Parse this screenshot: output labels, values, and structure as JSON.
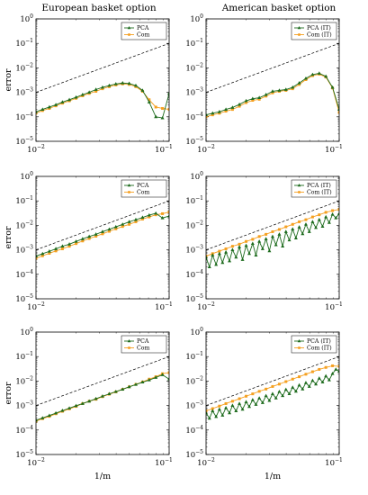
{
  "columns": [
    "European basket option",
    "American basket option"
  ],
  "colors": {
    "PCA": "#1d6b1d",
    "Com": "#f5a020",
    "reference": "#000000"
  },
  "chart_data": [
    {
      "type": "line",
      "log_scale": {
        "x": true,
        "y": true
      },
      "xlim": [
        0.01,
        0.1
      ],
      "ylim": [
        1e-05,
        1
      ],
      "xticks": [
        {
          "base": "10",
          "exp": "−2"
        },
        {
          "base": "10",
          "exp": "−1"
        }
      ],
      "yticks": [
        {
          "base": "10",
          "exp": "−5"
        },
        {
          "base": "10",
          "exp": "−4"
        },
        {
          "base": "10",
          "exp": "−3"
        },
        {
          "base": "10",
          "exp": "−2"
        },
        {
          "base": "10",
          "exp": "−1"
        },
        {
          "base": "10",
          "exp": "0"
        }
      ],
      "ylabel": "error",
      "xlabel": "",
      "legend_position": "top-right",
      "reference": {
        "x": [
          0.01,
          0.1
        ],
        "y": [
          0.001,
          0.1
        ],
        "style": "dashed"
      },
      "series": [
        {
          "name": "PCA",
          "x": [
            0.01,
            0.0112,
            0.0126,
            0.0141,
            0.0158,
            0.0178,
            0.02,
            0.0224,
            0.0251,
            0.0282,
            0.0316,
            0.0355,
            0.0398,
            0.0447,
            0.0501,
            0.0562,
            0.0631,
            0.0708,
            0.0794,
            0.0891,
            0.1
          ],
          "y": [
            0.00016,
            0.0002,
            0.00025,
            0.00031,
            0.0004,
            0.0005,
            0.00063,
            0.0008,
            0.001,
            0.0013,
            0.0016,
            0.0019,
            0.0022,
            0.0024,
            0.0023,
            0.0019,
            0.0012,
            0.0004,
            0.0001,
            9e-05,
            0.0009
          ],
          "marker": "triangle"
        },
        {
          "name": "Com",
          "x": [
            0.01,
            0.0112,
            0.0126,
            0.0141,
            0.0158,
            0.0178,
            0.02,
            0.0224,
            0.0251,
            0.0282,
            0.0316,
            0.0355,
            0.0398,
            0.0447,
            0.0501,
            0.0562,
            0.0631,
            0.0708,
            0.0794,
            0.0891,
            0.1
          ],
          "y": [
            0.00014,
            0.00018,
            0.00022,
            0.00028,
            0.00036,
            0.00045,
            0.00057,
            0.00072,
            0.0009,
            0.0011,
            0.0014,
            0.0017,
            0.002,
            0.0022,
            0.0021,
            0.0017,
            0.0011,
            0.0005,
            0.00025,
            0.00022,
            0.0002
          ],
          "marker": "square"
        }
      ]
    },
    {
      "type": "line",
      "log_scale": {
        "x": true,
        "y": true
      },
      "xlim": [
        0.01,
        0.1
      ],
      "ylim": [
        1e-05,
        1
      ],
      "xticks": [
        {
          "base": "10",
          "exp": "−2"
        },
        {
          "base": "10",
          "exp": "−1"
        }
      ],
      "yticks": [
        {
          "base": "10",
          "exp": "−5"
        },
        {
          "base": "10",
          "exp": "−4"
        },
        {
          "base": "10",
          "exp": "−3"
        },
        {
          "base": "10",
          "exp": "−2"
        },
        {
          "base": "10",
          "exp": "−1"
        },
        {
          "base": "10",
          "exp": "0"
        }
      ],
      "ylabel": "",
      "xlabel": "",
      "legend_position": "top-right",
      "reference": {
        "x": [
          0.01,
          0.1
        ],
        "y": [
          0.001,
          0.1
        ],
        "style": "dashed"
      },
      "series": [
        {
          "name": "PCA (IT)",
          "x": [
            0.01,
            0.0112,
            0.0126,
            0.0141,
            0.0158,
            0.0178,
            0.02,
            0.0224,
            0.0251,
            0.0282,
            0.0316,
            0.0355,
            0.0398,
            0.0447,
            0.0501,
            0.0562,
            0.0631,
            0.0708,
            0.0794,
            0.0891,
            0.1
          ],
          "y": [
            0.00012,
            0.00014,
            0.00016,
            0.0002,
            0.00024,
            0.00032,
            0.00045,
            0.00055,
            0.0006,
            0.0008,
            0.0011,
            0.0012,
            0.0013,
            0.0016,
            0.0024,
            0.0037,
            0.0053,
            0.006,
            0.0045,
            0.0016,
            0.0002
          ],
          "marker": "triangle"
        },
        {
          "name": "Com (IT)",
          "x": [
            0.01,
            0.0112,
            0.0126,
            0.0141,
            0.0158,
            0.0178,
            0.02,
            0.0224,
            0.0251,
            0.0282,
            0.0316,
            0.0355,
            0.0398,
            0.0447,
            0.0501,
            0.0562,
            0.0631,
            0.0708,
            0.0794,
            0.0891,
            0.1
          ],
          "y": [
            0.0001,
            0.00012,
            0.00014,
            0.00017,
            0.0002,
            0.00027,
            0.00038,
            0.00047,
            0.00052,
            0.0007,
            0.00095,
            0.0011,
            0.0012,
            0.0014,
            0.0021,
            0.0033,
            0.0048,
            0.0055,
            0.0042,
            0.0015,
            0.00015
          ],
          "marker": "square"
        }
      ]
    },
    {
      "type": "line",
      "log_scale": {
        "x": true,
        "y": true
      },
      "xlim": [
        0.01,
        0.1
      ],
      "ylim": [
        1e-05,
        1
      ],
      "xticks": [
        {
          "base": "10",
          "exp": "−2"
        },
        {
          "base": "10",
          "exp": "−1"
        }
      ],
      "yticks": [
        {
          "base": "10",
          "exp": "−5"
        },
        {
          "base": "10",
          "exp": "−4"
        },
        {
          "base": "10",
          "exp": "−3"
        },
        {
          "base": "10",
          "exp": "−2"
        },
        {
          "base": "10",
          "exp": "−1"
        },
        {
          "base": "10",
          "exp": "0"
        }
      ],
      "ylabel": "error",
      "xlabel": "",
      "legend_position": "top-right",
      "reference": {
        "x": [
          0.01,
          0.1
        ],
        "y": [
          0.001,
          0.1
        ],
        "style": "dashed"
      },
      "series": [
        {
          "name": "PCA",
          "x": [
            0.01,
            0.0112,
            0.0126,
            0.0141,
            0.0158,
            0.0178,
            0.02,
            0.0224,
            0.0251,
            0.0282,
            0.0316,
            0.0355,
            0.0398,
            0.0447,
            0.0501,
            0.0562,
            0.0631,
            0.0708,
            0.0794,
            0.0891,
            0.1
          ],
          "y": [
            0.00055,
            0.00069,
            0.00087,
            0.0011,
            0.0014,
            0.0017,
            0.0022,
            0.0028,
            0.0035,
            0.0043,
            0.0055,
            0.0069,
            0.0087,
            0.011,
            0.014,
            0.017,
            0.021,
            0.026,
            0.031,
            0.02,
            0.024
          ],
          "marker": "triangle"
        },
        {
          "name": "Com",
          "x": [
            0.01,
            0.0112,
            0.0126,
            0.0141,
            0.0158,
            0.0178,
            0.02,
            0.0224,
            0.0251,
            0.0282,
            0.0316,
            0.0355,
            0.0398,
            0.0447,
            0.0501,
            0.0562,
            0.0631,
            0.0708,
            0.0794,
            0.0891,
            0.1
          ],
          "y": [
            0.00045,
            0.00057,
            0.00072,
            0.0009,
            0.0011,
            0.0014,
            0.0018,
            0.0023,
            0.0029,
            0.0036,
            0.0045,
            0.0057,
            0.0072,
            0.009,
            0.011,
            0.014,
            0.018,
            0.022,
            0.027,
            0.03,
            0.035
          ],
          "marker": "square"
        }
      ]
    },
    {
      "type": "line",
      "log_scale": {
        "x": true,
        "y": true
      },
      "xlim": [
        0.01,
        0.1
      ],
      "ylim": [
        1e-05,
        1
      ],
      "xticks": [
        {
          "base": "10",
          "exp": "−2"
        },
        {
          "base": "10",
          "exp": "−1"
        }
      ],
      "yticks": [
        {
          "base": "10",
          "exp": "−5"
        },
        {
          "base": "10",
          "exp": "−4"
        },
        {
          "base": "10",
          "exp": "−3"
        },
        {
          "base": "10",
          "exp": "−2"
        },
        {
          "base": "10",
          "exp": "−1"
        },
        {
          "base": "10",
          "exp": "0"
        }
      ],
      "ylabel": "",
      "xlabel": "",
      "legend_position": "top-right",
      "reference": {
        "x": [
          0.01,
          0.1
        ],
        "y": [
          0.001,
          0.1
        ],
        "style": "dashed"
      },
      "series": [
        {
          "name": "PCA (IT)",
          "x": [
            0.01,
            0.0106,
            0.0112,
            0.0119,
            0.0126,
            0.0133,
            0.0141,
            0.015,
            0.0158,
            0.0168,
            0.0178,
            0.0188,
            0.02,
            0.0211,
            0.0224,
            0.0237,
            0.0251,
            0.0266,
            0.0282,
            0.0299,
            0.0316,
            0.0335,
            0.0355,
            0.0376,
            0.0398,
            0.0422,
            0.0447,
            0.0473,
            0.0501,
            0.0531,
            0.0562,
            0.0596,
            0.0631,
            0.0668,
            0.0708,
            0.075,
            0.0794,
            0.0841,
            0.0891,
            0.0944,
            0.1
          ],
          "y": [
            0.0005,
            0.0002,
            0.0006,
            0.00025,
            0.0007,
            0.0003,
            0.0008,
            0.00035,
            0.001,
            0.0005,
            0.0013,
            0.0004,
            0.0015,
            0.0007,
            0.0018,
            0.0006,
            0.0022,
            0.0011,
            0.0028,
            0.0009,
            0.0035,
            0.0016,
            0.0043,
            0.0014,
            0.0055,
            0.0025,
            0.007,
            0.003,
            0.0085,
            0.0045,
            0.011,
            0.0055,
            0.014,
            0.008,
            0.017,
            0.009,
            0.022,
            0.013,
            0.028,
            0.02,
            0.03
          ],
          "marker": "triangle"
        },
        {
          "name": "Com (IT)",
          "x": [
            0.01,
            0.0112,
            0.0126,
            0.0141,
            0.0158,
            0.0178,
            0.02,
            0.0224,
            0.0251,
            0.0282,
            0.0316,
            0.0355,
            0.0398,
            0.0447,
            0.0501,
            0.0562,
            0.0631,
            0.0708,
            0.0794,
            0.0891,
            0.1
          ],
          "y": [
            0.00055,
            0.0007,
            0.00088,
            0.0011,
            0.0014,
            0.0017,
            0.0022,
            0.0027,
            0.0035,
            0.0043,
            0.0055,
            0.0068,
            0.0087,
            0.011,
            0.014,
            0.017,
            0.022,
            0.027,
            0.034,
            0.04,
            0.045
          ],
          "marker": "square"
        }
      ]
    },
    {
      "type": "line",
      "log_scale": {
        "x": true,
        "y": true
      },
      "xlim": [
        0.01,
        0.1
      ],
      "ylim": [
        1e-05,
        1
      ],
      "xticks": [
        {
          "base": "10",
          "exp": "−2"
        },
        {
          "base": "10",
          "exp": "−1"
        }
      ],
      "yticks": [
        {
          "base": "10",
          "exp": "−5"
        },
        {
          "base": "10",
          "exp": "−4"
        },
        {
          "base": "10",
          "exp": "−3"
        },
        {
          "base": "10",
          "exp": "−2"
        },
        {
          "base": "10",
          "exp": "−1"
        },
        {
          "base": "10",
          "exp": "0"
        }
      ],
      "ylabel": "error",
      "xlabel": "1/m",
      "legend_position": "top-right",
      "reference": {
        "x": [
          0.01,
          0.1
        ],
        "y": [
          0.001,
          0.1
        ],
        "style": "dashed"
      },
      "series": [
        {
          "name": "PCA",
          "x": [
            0.01,
            0.0112,
            0.0126,
            0.0141,
            0.0158,
            0.0178,
            0.02,
            0.0224,
            0.0251,
            0.0282,
            0.0316,
            0.0355,
            0.0398,
            0.0447,
            0.0501,
            0.0562,
            0.0631,
            0.0708,
            0.0794,
            0.0891,
            0.1
          ],
          "y": [
            0.00025,
            0.00031,
            0.00039,
            0.00049,
            0.00062,
            0.00078,
            0.00098,
            0.0012,
            0.0015,
            0.0019,
            0.0024,
            0.003,
            0.0037,
            0.0046,
            0.0058,
            0.0072,
            0.009,
            0.011,
            0.014,
            0.018,
            0.012
          ],
          "marker": "triangle"
        },
        {
          "name": "Com",
          "x": [
            0.01,
            0.0112,
            0.0126,
            0.0141,
            0.0158,
            0.0178,
            0.02,
            0.0224,
            0.0251,
            0.0282,
            0.0316,
            0.0355,
            0.0398,
            0.0447,
            0.0501,
            0.0562,
            0.0631,
            0.0708,
            0.0794,
            0.0891,
            0.1
          ],
          "y": [
            0.00023,
            0.00029,
            0.00036,
            0.00046,
            0.00058,
            0.00073,
            0.00092,
            0.0012,
            0.0015,
            0.0018,
            0.0023,
            0.0029,
            0.0036,
            0.0046,
            0.0058,
            0.0073,
            0.0092,
            0.012,
            0.015,
            0.02,
            0.022
          ],
          "marker": "square"
        }
      ]
    },
    {
      "type": "line",
      "log_scale": {
        "x": true,
        "y": true
      },
      "xlim": [
        0.01,
        0.1
      ],
      "ylim": [
        1e-05,
        1
      ],
      "xticks": [
        {
          "base": "10",
          "exp": "−2"
        },
        {
          "base": "10",
          "exp": "−1"
        }
      ],
      "yticks": [
        {
          "base": "10",
          "exp": "−5"
        },
        {
          "base": "10",
          "exp": "−4"
        },
        {
          "base": "10",
          "exp": "−3"
        },
        {
          "base": "10",
          "exp": "−2"
        },
        {
          "base": "10",
          "exp": "−1"
        },
        {
          "base": "10",
          "exp": "0"
        }
      ],
      "ylabel": "",
      "xlabel": "1/m",
      "legend_position": "top-right",
      "reference": {
        "x": [
          0.01,
          0.1
        ],
        "y": [
          0.001,
          0.1
        ],
        "style": "dashed"
      },
      "series": [
        {
          "name": "PCA (IT)",
          "x": [
            0.01,
            0.0106,
            0.0112,
            0.0119,
            0.0126,
            0.0133,
            0.0141,
            0.015,
            0.0158,
            0.0168,
            0.0178,
            0.0188,
            0.02,
            0.0211,
            0.0224,
            0.0237,
            0.0251,
            0.0266,
            0.0282,
            0.0299,
            0.0316,
            0.0335,
            0.0355,
            0.0376,
            0.0398,
            0.0422,
            0.0447,
            0.0473,
            0.0501,
            0.0531,
            0.0562,
            0.0596,
            0.0631,
            0.0668,
            0.0708,
            0.075,
            0.0794,
            0.0841,
            0.0891,
            0.0944,
            0.1
          ],
          "y": [
            0.0005,
            0.0003,
            0.0006,
            0.00035,
            0.0007,
            0.0004,
            0.0008,
            0.0005,
            0.001,
            0.0006,
            0.0012,
            0.0007,
            0.0014,
            0.0009,
            0.0017,
            0.0011,
            0.002,
            0.0013,
            0.0025,
            0.0016,
            0.003,
            0.002,
            0.0037,
            0.0025,
            0.0045,
            0.003,
            0.0055,
            0.0038,
            0.0068,
            0.0047,
            0.0085,
            0.006,
            0.0105,
            0.0075,
            0.013,
            0.009,
            0.016,
            0.011,
            0.02,
            0.03,
            0.025
          ],
          "marker": "triangle"
        },
        {
          "name": "Com (IT)",
          "x": [
            0.01,
            0.0112,
            0.0126,
            0.0141,
            0.0158,
            0.0178,
            0.02,
            0.0224,
            0.0251,
            0.0282,
            0.0316,
            0.0355,
            0.0398,
            0.0447,
            0.0501,
            0.0562,
            0.0631,
            0.0708,
            0.0794,
            0.0891,
            0.1
          ],
          "y": [
            0.0006,
            0.00075,
            0.00095,
            0.0012,
            0.0015,
            0.0019,
            0.0024,
            0.003,
            0.0038,
            0.0047,
            0.006,
            0.0075,
            0.0095,
            0.012,
            0.015,
            0.019,
            0.024,
            0.03,
            0.036,
            0.042,
            0.04
          ],
          "marker": "square"
        }
      ]
    }
  ]
}
